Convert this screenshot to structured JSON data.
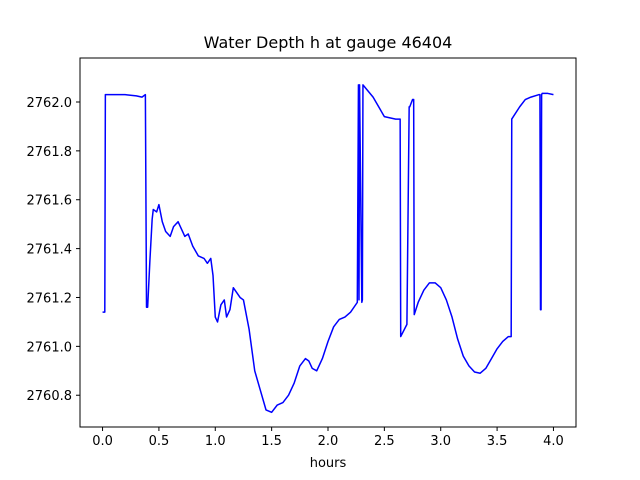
{
  "chart_data": {
    "type": "line",
    "title": "Water Depth h at gauge 46404",
    "xlabel": "hours",
    "ylabel": "",
    "xlim": [
      -0.2,
      4.2
    ],
    "ylim": [
      2760.67,
      2762.18
    ],
    "xticks": [
      0.0,
      0.5,
      1.0,
      1.5,
      2.0,
      2.5,
      3.0,
      3.5,
      4.0
    ],
    "xtick_labels": [
      "0.0",
      "0.5",
      "1.0",
      "1.5",
      "2.0",
      "2.5",
      "3.0",
      "3.5",
      "4.0"
    ],
    "yticks": [
      2760.8,
      2761.0,
      2761.2,
      2761.4,
      2761.6,
      2761.8,
      2762.0
    ],
    "ytick_labels": [
      "2760.8",
      "2761.0",
      "2761.2",
      "2761.4",
      "2761.6",
      "2761.8",
      "2762.0"
    ],
    "grid": false,
    "series": [
      {
        "name": "",
        "color": "#0000ff",
        "x": [
          0.0,
          0.02,
          0.025,
          0.1,
          0.2,
          0.3,
          0.35,
          0.38,
          0.39,
          0.4,
          0.42,
          0.44,
          0.45,
          0.48,
          0.5,
          0.53,
          0.56,
          0.6,
          0.63,
          0.67,
          0.7,
          0.73,
          0.76,
          0.8,
          0.85,
          0.9,
          0.93,
          0.96,
          0.98,
          1.0,
          1.02,
          1.05,
          1.08,
          1.1,
          1.13,
          1.16,
          1.19,
          1.22,
          1.25,
          1.3,
          1.35,
          1.4,
          1.45,
          1.5,
          1.55,
          1.6,
          1.65,
          1.7,
          1.75,
          1.8,
          1.83,
          1.86,
          1.9,
          1.95,
          2.0,
          2.05,
          2.1,
          2.15,
          2.2,
          2.26,
          2.27,
          2.275,
          2.28,
          2.3,
          2.305,
          2.31,
          2.4,
          2.5,
          2.6,
          2.64,
          2.645,
          2.7,
          2.72,
          2.725,
          2.75,
          2.76,
          2.765,
          2.8,
          2.85,
          2.9,
          2.95,
          3.0,
          3.05,
          3.1,
          3.15,
          3.2,
          3.25,
          3.3,
          3.35,
          3.4,
          3.45,
          3.5,
          3.55,
          3.6,
          3.625,
          3.63,
          3.7,
          3.75,
          3.8,
          3.87,
          3.88,
          3.885,
          3.89,
          3.895,
          3.9,
          3.95,
          4.0
        ],
        "y": [
          2761.14,
          2761.14,
          2762.03,
          2762.03,
          2762.03,
          2762.025,
          2762.02,
          2762.03,
          2761.16,
          2761.16,
          2761.35,
          2761.52,
          2761.56,
          2761.55,
          2761.58,
          2761.51,
          2761.47,
          2761.45,
          2761.49,
          2761.51,
          2761.48,
          2761.45,
          2761.46,
          2761.41,
          2761.37,
          2761.36,
          2761.34,
          2761.36,
          2761.29,
          2761.12,
          2761.1,
          2761.17,
          2761.19,
          2761.12,
          2761.15,
          2761.24,
          2761.22,
          2761.2,
          2761.19,
          2761.07,
          2760.9,
          2760.82,
          2760.74,
          2760.73,
          2760.76,
          2760.77,
          2760.8,
          2760.85,
          2760.92,
          2760.95,
          2760.94,
          2760.91,
          2760.9,
          2760.95,
          2761.02,
          2761.08,
          2761.11,
          2761.12,
          2761.14,
          2761.18,
          2762.07,
          2761.19,
          2762.07,
          2761.18,
          2761.19,
          2762.07,
          2762.02,
          2761.94,
          2761.93,
          2761.93,
          2761.04,
          2761.09,
          2761.98,
          2761.98,
          2762.01,
          2762.01,
          2761.13,
          2761.18,
          2761.23,
          2761.26,
          2761.26,
          2761.24,
          2761.19,
          2761.12,
          2761.03,
          2760.96,
          2760.92,
          2760.895,
          2760.89,
          2760.91,
          2760.95,
          2760.99,
          2761.02,
          2761.04,
          2761.04,
          2761.93,
          2761.98,
          2762.01,
          2762.02,
          2762.03,
          2762.03,
          2761.15,
          2761.15,
          2762.03,
          2762.035,
          2762.035,
          2762.03
        ]
      }
    ]
  }
}
